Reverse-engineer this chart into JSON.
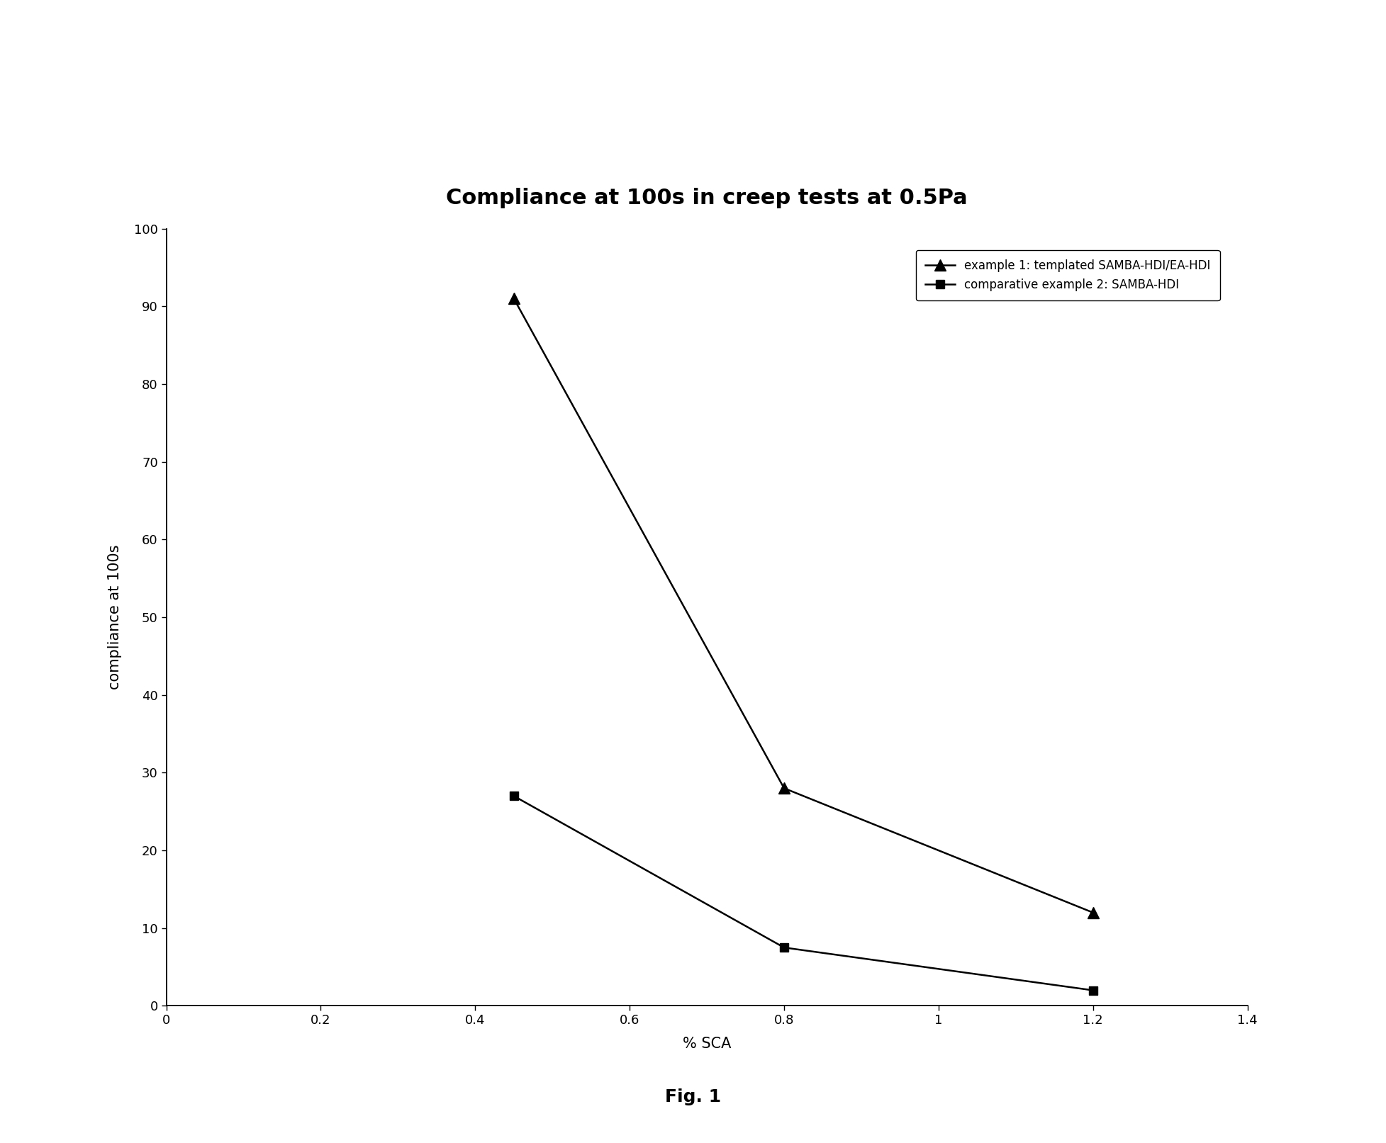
{
  "title": "Compliance at 100s in creep tests at 0.5Pa",
  "xlabel": "% SCA",
  "ylabel": "compliance at 100s",
  "xlim": [
    0,
    1.4
  ],
  "ylim": [
    0,
    100
  ],
  "xticks": [
    0,
    0.2,
    0.4,
    0.6,
    0.8,
    1.0,
    1.2,
    1.4
  ],
  "xtick_labels": [
    "0",
    "0.2",
    "0.4",
    "0.6",
    "0.8",
    "1",
    "1.2",
    "1.4"
  ],
  "yticks": [
    0,
    10,
    20,
    30,
    40,
    50,
    60,
    70,
    80,
    90,
    100
  ],
  "ytick_labels": [
    "0",
    "10",
    "20",
    "30",
    "40",
    "50",
    "60",
    "70",
    "80",
    "90",
    "100"
  ],
  "series1": {
    "x": [
      0.45,
      0.8,
      1.2
    ],
    "y": [
      91,
      28,
      12
    ],
    "label": "example 1: templated SAMBA-HDI/EA-HDI",
    "color": "#000000",
    "marker": "^",
    "markersize": 12,
    "linewidth": 1.8,
    "linestyle": "-"
  },
  "series2": {
    "x": [
      0.45,
      0.8,
      1.2
    ],
    "y": [
      27,
      7.5,
      2
    ],
    "label": "comparative example 2: SAMBA-HDI",
    "color": "#000000",
    "marker": "s",
    "markersize": 9,
    "linewidth": 1.8,
    "linestyle": "-"
  },
  "fig_label": "Fig. 1",
  "title_fontsize": 22,
  "axis_label_fontsize": 15,
  "tick_fontsize": 13,
  "legend_fontsize": 12,
  "background_color": "#ffffff",
  "fig_width": 19.55,
  "fig_height": 16.13
}
